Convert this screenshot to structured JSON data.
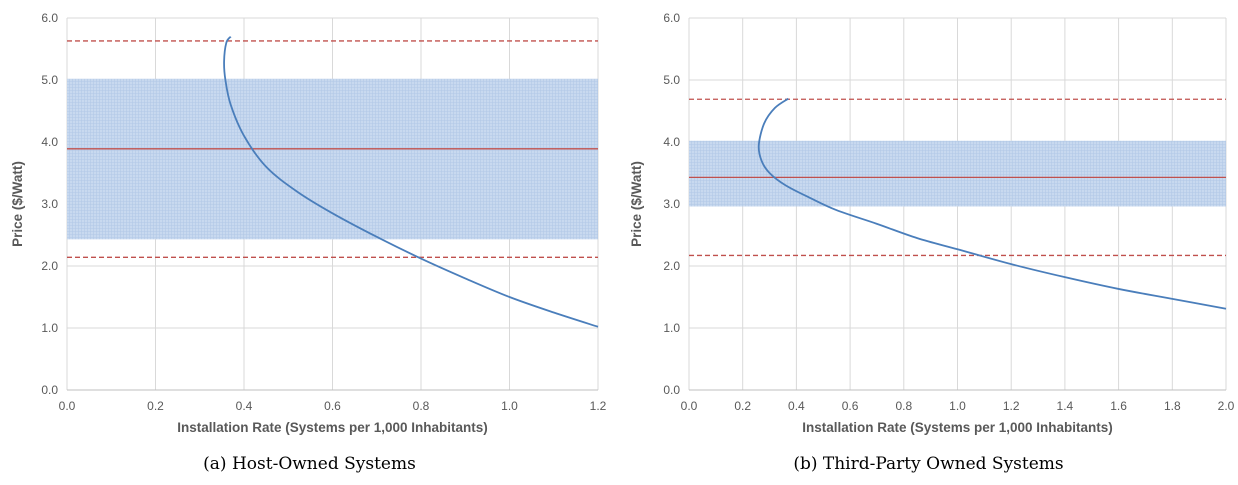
{
  "chart_data": [
    {
      "type": "line",
      "caption": "(a) Host-Owned Systems",
      "xlabel": "Installation Rate (Systems per 1,000 Inhabitants)",
      "ylabel": "Price ($/Watt)",
      "xlim": [
        0.0,
        1.2
      ],
      "ylim": [
        0.0,
        6.0
      ],
      "xticks": [
        "0.0",
        "0.2",
        "0.4",
        "0.6",
        "0.8",
        "1.0",
        "1.2"
      ],
      "yticks": [
        "0.0",
        "1.0",
        "2.0",
        "3.0",
        "4.0",
        "5.0",
        "6.0"
      ],
      "grid": true,
      "band": {
        "y_min": 2.43,
        "y_max": 5.02,
        "color": "#c5d7ee"
      },
      "hlines": [
        {
          "y": 3.89,
          "style": "solid",
          "color": "#c0504d"
        },
        {
          "y": 5.63,
          "style": "dashed",
          "color": "#c0504d"
        },
        {
          "y": 2.14,
          "style": "dashed",
          "color": "#c0504d"
        }
      ],
      "series": [
        {
          "color": "#4a7ebb",
          "x": [
            0.37,
            0.36,
            0.355,
            0.358,
            0.37,
            0.4,
            0.45,
            0.52,
            0.6,
            0.7,
            0.8,
            0.9,
            1.0,
            1.1,
            1.2
          ],
          "y": [
            5.7,
            5.6,
            5.3,
            5.0,
            4.6,
            4.1,
            3.6,
            3.2,
            2.85,
            2.47,
            2.12,
            1.8,
            1.5,
            1.25,
            1.02
          ]
        }
      ]
    },
    {
      "type": "line",
      "caption": "(b) Third-Party Owned Systems",
      "xlabel": "Installation Rate (Systems per 1,000 Inhabitants)",
      "ylabel": "Price ($/Watt)",
      "xlim": [
        0.0,
        2.0
      ],
      "ylim": [
        0.0,
        6.0
      ],
      "xticks": [
        "0.0",
        "0.2",
        "0.4",
        "0.6",
        "0.8",
        "1.0",
        "1.2",
        "1.4",
        "1.6",
        "1.8",
        "2.0"
      ],
      "yticks": [
        "0.0",
        "1.0",
        "2.0",
        "3.0",
        "4.0",
        "5.0",
        "6.0"
      ],
      "grid": true,
      "band": {
        "y_min": 2.96,
        "y_max": 4.02,
        "color": "#c5d7ee"
      },
      "hlines": [
        {
          "y": 3.43,
          "style": "solid",
          "color": "#c0504d"
        },
        {
          "y": 4.69,
          "style": "dashed",
          "color": "#c0504d"
        },
        {
          "y": 2.17,
          "style": "dashed",
          "color": "#c0504d"
        }
      ],
      "series": [
        {
          "color": "#4a7ebb",
          "x": [
            0.37,
            0.32,
            0.28,
            0.26,
            0.27,
            0.3,
            0.36,
            0.45,
            0.55,
            0.7,
            0.85,
            1.0,
            1.2,
            1.4,
            1.6,
            1.8,
            2.0
          ],
          "y": [
            4.7,
            4.55,
            4.3,
            3.95,
            3.7,
            3.5,
            3.3,
            3.1,
            2.9,
            2.68,
            2.45,
            2.27,
            2.03,
            1.82,
            1.63,
            1.47,
            1.31
          ]
        }
      ]
    }
  ]
}
